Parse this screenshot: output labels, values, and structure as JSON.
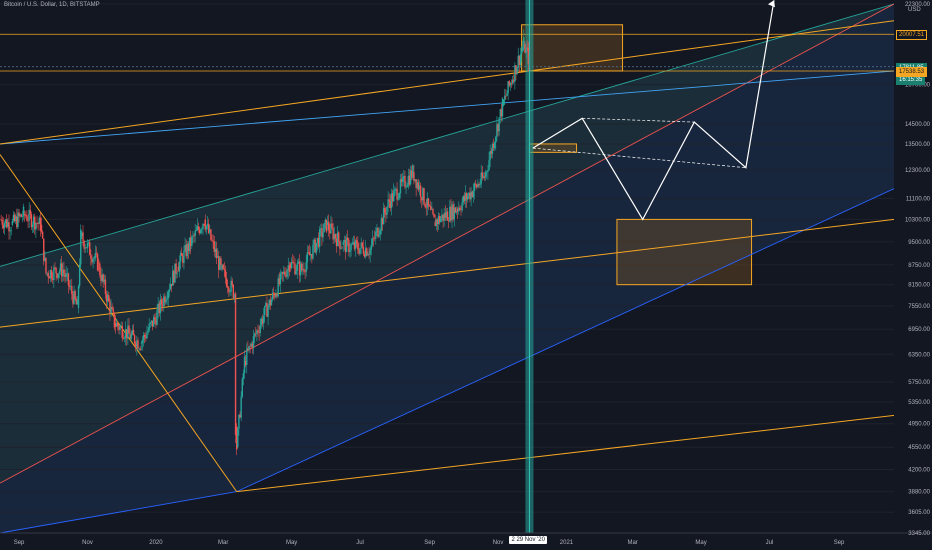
{
  "header": {
    "title": "Bitcoin / U.S. Dollar, 1D, BITSTAMP",
    "currency": "USD"
  },
  "price_badges": [
    {
      "label": "20007.51",
      "price": 20007.51,
      "bg": "#131722",
      "fg": "#f5a623",
      "border": "#f5a623"
    },
    {
      "label": "17811.85",
      "price": 17811.85,
      "bg": "#1a7f6e",
      "fg": "#ffffff",
      "border": "#1a7f6e"
    },
    {
      "label": "16:15:35",
      "price": 17050,
      "bg": "#1a7f6e",
      "fg": "#ffffff",
      "border": "#1a7f6e"
    },
    {
      "label": "17538.53",
      "price": 17538.53,
      "bg": "#f5a623",
      "fg": "#131722",
      "border": "#f5a623"
    }
  ],
  "crosshair_label": "2 29 Nov '20",
  "chart_data": {
    "type": "candlestick",
    "title": "Bitcoin / U.S. Dollar, 1D, BITSTAMP",
    "y_axis": {
      "scale": "log",
      "unit": "USD",
      "ticks": [
        22300,
        16700,
        14500,
        13500,
        12300,
        11100,
        10300,
        9500,
        8750,
        8150,
        7550,
        6950,
        6350,
        5750,
        5350,
        4950,
        4550,
        4200,
        3880,
        3605,
        3345
      ]
    },
    "x_axis": {
      "range": [
        "2019-08-15",
        "2021-10-20"
      ],
      "ticks": [
        "Sep",
        "Nov",
        "2020",
        "Mar",
        "May",
        "Jul",
        "Sep",
        "Nov",
        "2021",
        "Mar",
        "May",
        "Jul",
        "Sep"
      ]
    },
    "price_path": [
      {
        "date": "2019-08-15",
        "close": 10300
      },
      {
        "date": "2019-08-25",
        "close": 10100
      },
      {
        "date": "2019-09-05",
        "close": 10500
      },
      {
        "date": "2019-09-20",
        "close": 10100
      },
      {
        "date": "2019-09-25",
        "close": 8500
      },
      {
        "date": "2019-10-10",
        "close": 8600
      },
      {
        "date": "2019-10-23",
        "close": 7500
      },
      {
        "date": "2019-10-26",
        "close": 9700
      },
      {
        "date": "2019-11-10",
        "close": 8800
      },
      {
        "date": "2019-11-25",
        "close": 7100
      },
      {
        "date": "2019-12-18",
        "close": 6600
      },
      {
        "date": "2019-12-31",
        "close": 7200
      },
      {
        "date": "2020-01-20",
        "close": 8700
      },
      {
        "date": "2020-02-13",
        "close": 10300
      },
      {
        "date": "2020-02-28",
        "close": 8600
      },
      {
        "date": "2020-03-11",
        "close": 7900
      },
      {
        "date": "2020-03-12",
        "close": 4900
      },
      {
        "date": "2020-03-13",
        "close": 4550
      },
      {
        "date": "2020-03-20",
        "close": 6200
      },
      {
        "date": "2020-04-06",
        "close": 7300
      },
      {
        "date": "2020-04-29",
        "close": 8800
      },
      {
        "date": "2020-05-10",
        "close": 8600
      },
      {
        "date": "2020-06-01",
        "close": 10100
      },
      {
        "date": "2020-06-15",
        "close": 9400
      },
      {
        "date": "2020-07-10",
        "close": 9250
      },
      {
        "date": "2020-07-27",
        "close": 11000
      },
      {
        "date": "2020-08-17",
        "close": 12200
      },
      {
        "date": "2020-09-05",
        "close": 10200
      },
      {
        "date": "2020-09-25",
        "close": 10700
      },
      {
        "date": "2020-10-20",
        "close": 12000
      },
      {
        "date": "2020-11-05",
        "close": 15500
      },
      {
        "date": "2020-11-24",
        "close": 19300
      },
      {
        "date": "2020-11-29",
        "close": 18200
      }
    ],
    "fills": {
      "up": "#26a69a",
      "down": "#ef5350",
      "channel_fill": "#1e3a5f",
      "green_band_fill": "#223b30",
      "box_fill": "#8a5a1e"
    },
    "pitchfork_lines": [
      {
        "color": "#2962ff",
        "points": [
          [
            "2019-08-15",
            3345
          ],
          [
            "2020-03-13",
            3880
          ],
          [
            "2021-10-20",
            11500
          ]
        ]
      },
      {
        "color": "#26a69a",
        "points": [
          [
            "2019-08-15",
            8700
          ],
          [
            "2021-10-20",
            22300
          ]
        ]
      },
      {
        "color": "#ef5350",
        "points": [
          [
            "2019-08-15",
            4000
          ],
          [
            "2021-10-20",
            22300
          ]
        ]
      },
      {
        "color": "#42a5f5",
        "points": [
          [
            "2019-08-15",
            13500
          ],
          [
            "2021-10-20",
            17538.53
          ]
        ]
      }
    ],
    "trend_lines": [
      {
        "color": "#f5a623",
        "points": [
          [
            "2019-08-15",
            13500
          ],
          [
            "2021-10-20",
            21000
          ]
        ]
      },
      {
        "color": "#f5a623",
        "points": [
          [
            "2019-08-15",
            7000
          ],
          [
            "2021-10-20",
            10300
          ]
        ]
      },
      {
        "color": "#f5a623",
        "points": [
          [
            "2020-03-13",
            3880
          ],
          [
            "2021-10-20",
            5100
          ]
        ]
      },
      {
        "color": "#f5a623",
        "points": [
          [
            "2019-08-15",
            13000
          ],
          [
            "2020-03-13",
            3880
          ]
        ]
      }
    ],
    "projection_path": [
      [
        "2020-12-02",
        13300
      ],
      [
        "2021-01-15",
        14800
      ],
      [
        "2021-03-10",
        10300
      ],
      [
        "2021-04-25",
        14600
      ],
      [
        "2021-06-10",
        12400
      ],
      [
        "2021-07-05",
        22600
      ]
    ],
    "dashed_channel": [
      [
        [
          "2020-12-02",
          13300
        ],
        [
          "2021-06-10",
          12400
        ]
      ],
      [
        [
          "2021-01-15",
          14800
        ],
        [
          "2021-04-25",
          14600
        ]
      ]
    ],
    "boxes": [
      {
        "from": "2020-11-22",
        "to": "2021-02-20",
        "top": 20700,
        "bottom": 17538.53
      },
      {
        "from": "2020-11-29",
        "to": "2021-01-10",
        "top": 13500,
        "bottom": 13100
      },
      {
        "from": "2021-02-15",
        "to": "2021-06-15",
        "top": 10300,
        "bottom": 8150
      }
    ],
    "current_date": "2020-11-29",
    "crosshair_date": "2020-11-29",
    "horizontal_lines": [
      20007.51,
      17538.53,
      17811.85
    ]
  }
}
